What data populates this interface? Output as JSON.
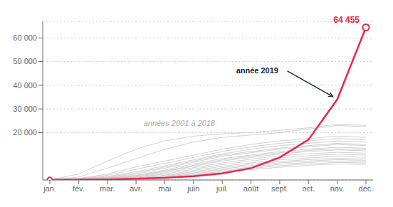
{
  "chart_data": {
    "type": "line",
    "categories": [
      "jan.",
      "fév.",
      "mar.",
      "avr.",
      "mai",
      "juin",
      "juil.",
      "août",
      "sept.",
      "oct.",
      "nov.",
      "déc."
    ],
    "series": [
      {
        "color": "#c8c8c8",
        "values": [
          50,
          2500,
          8000,
          13000,
          16500,
          18500,
          19500,
          20000,
          21000,
          22000,
          23500,
          23000
        ]
      },
      {
        "color": "#c8c8c8",
        "values": [
          40,
          1200,
          5000,
          9000,
          13000,
          16000,
          18000,
          19000,
          20000,
          21500,
          23000,
          22500
        ]
      },
      {
        "color": "#c8c8c8",
        "values": [
          30,
          600,
          2500,
          5500,
          8000,
          10500,
          13000,
          15000,
          16500,
          17500,
          18500,
          18000
        ]
      },
      {
        "color": "#c8c8c8",
        "values": [
          30,
          500,
          2000,
          4500,
          7000,
          9500,
          12000,
          14000,
          15500,
          16500,
          17500,
          17000
        ]
      },
      {
        "color": "#c8c8c8",
        "values": [
          25,
          400,
          1500,
          3500,
          6000,
          8500,
          11000,
          13000,
          14500,
          15500,
          16500,
          16000
        ]
      },
      {
        "color": "#c8c8c8",
        "values": [
          20,
          300,
          1200,
          3000,
          5500,
          8000,
          10500,
          12000,
          13500,
          14500,
          15500,
          15000
        ]
      },
      {
        "color": "#c8c8c8",
        "values": [
          20,
          250,
          1000,
          2500,
          5000,
          7500,
          10000,
          11500,
          13000,
          14000,
          15000,
          14500
        ]
      },
      {
        "color": "#c8c8c8",
        "values": [
          15,
          200,
          800,
          2000,
          4200,
          6800,
          9000,
          10500,
          12000,
          13000,
          13800,
          13400
        ]
      },
      {
        "color": "#c8c8c8",
        "values": [
          15,
          180,
          700,
          1800,
          3800,
          6200,
          8500,
          10000,
          11500,
          12500,
          13200,
          12800
        ]
      },
      {
        "color": "#c8c8c8",
        "values": [
          12,
          150,
          600,
          1500,
          3500,
          5800,
          8000,
          9500,
          11000,
          12000,
          12700,
          12300
        ]
      },
      {
        "color": "#c8c8c8",
        "values": [
          10,
          120,
          500,
          1300,
          3000,
          5200,
          7200,
          8800,
          10200,
          11000,
          11700,
          11300
        ]
      },
      {
        "color": "#c8c8c8",
        "values": [
          10,
          100,
          400,
          1100,
          2500,
          4600,
          6500,
          8000,
          9400,
          10200,
          10900,
          10500
        ]
      },
      {
        "color": "#c8c8c8",
        "values": [
          8,
          80,
          300,
          900,
          2000,
          4000,
          5800,
          7200,
          8500,
          9300,
          10000,
          9600
        ]
      },
      {
        "color": "#c8c8c8",
        "values": [
          7,
          60,
          250,
          750,
          1700,
          3500,
          5200,
          6600,
          7800,
          8600,
          9200,
          8900
        ]
      },
      {
        "color": "#c8c8c8",
        "values": [
          6,
          50,
          200,
          600,
          1500,
          3000,
          4700,
          6000,
          7200,
          8000,
          8600,
          8300
        ]
      },
      {
        "color": "#c8c8c8",
        "values": [
          5,
          40,
          150,
          500,
          1200,
          2600,
          4200,
          5400,
          6600,
          7400,
          8000,
          7700
        ]
      },
      {
        "color": "#c8c8c8",
        "values": [
          5,
          35,
          120,
          400,
          1000,
          2200,
          3700,
          4900,
          6000,
          6800,
          7400,
          7200
        ]
      },
      {
        "color": "#c8c8c8",
        "values": [
          4,
          30,
          100,
          350,
          900,
          2000,
          3300,
          4400,
          5400,
          6200,
          6800,
          6600
        ]
      },
      {
        "color": "#e8274b",
        "values": [
          50,
          120,
          250,
          500,
          900,
          1600,
          2800,
          5000,
          9500,
          17000,
          34000,
          64455
        ]
      }
    ],
    "ylim": [
      0,
      67000
    ],
    "yticks": [
      {
        "value": 20000,
        "label": "20 000"
      },
      {
        "value": 30000,
        "label": "30 000"
      },
      {
        "value": 40000,
        "label": "40 000"
      },
      {
        "value": 50000,
        "label": "50 000"
      },
      {
        "value": 60000,
        "label": "60 000"
      }
    ],
    "grid": true,
    "annotations": [
      {
        "text": "64 455",
        "color": "#e8274b"
      },
      {
        "text": "année 2019",
        "color": "#1a2340"
      },
      {
        "text": "années 2001 à 2018",
        "color": "#aaaaaa"
      }
    ]
  }
}
